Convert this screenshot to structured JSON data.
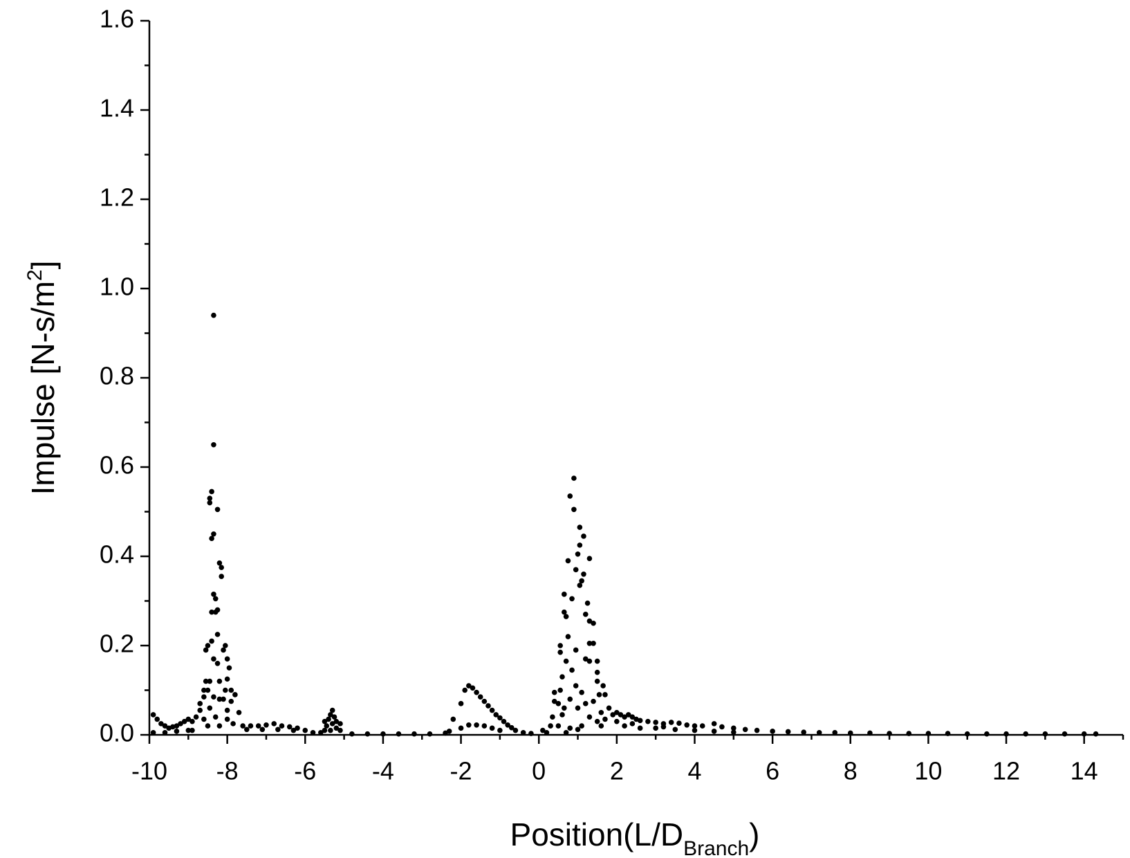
{
  "chart_data": {
    "type": "scatter",
    "x_label": {
      "text": "Position(L/D",
      "sub": "Branch",
      "end": ")"
    },
    "y_label": {
      "text": "Impulse [N-s/m",
      "sup": "2",
      "end": "]"
    },
    "color": "#000000",
    "xlim": [
      -10,
      15
    ],
    "ylim": [
      0,
      1.6
    ],
    "xticks": [
      -10,
      -8,
      -6,
      -4,
      -2,
      0,
      2,
      4,
      6,
      8,
      10,
      12,
      14
    ],
    "xticks_minor": [
      -9,
      -7,
      -5,
      -3,
      -1,
      1,
      3,
      5,
      7,
      9,
      11,
      13,
      15
    ],
    "yticks": [
      {
        "value": 0,
        "label": "0.0"
      },
      0.2,
      0.4,
      0.6,
      0.8,
      {
        "value": 1,
        "label": "1.0"
      },
      1.2,
      1.4,
      1.6
    ],
    "yticks_minor": [
      0.1,
      0.3,
      0.5,
      0.7,
      0.9,
      1.1,
      1.3,
      1.5
    ],
    "x": [
      -8.35,
      -8.35,
      -8.4,
      -8.45,
      -8.45,
      -8.25,
      -8.35,
      -8.4,
      -8.2,
      -8.15,
      -8.15,
      -8.35,
      -8.3,
      -8.4,
      -8.3,
      -8.25,
      -8.25,
      -8.4,
      -8.5,
      -8.55,
      -8.05,
      -8.1,
      -8.0,
      -7.95,
      -8.35,
      -8.25,
      -8.55,
      -8.45,
      -8.6,
      -8.5,
      -8.2,
      -8.0,
      -8.05,
      -7.9,
      -7.8,
      -8.7,
      -8.6,
      -8.35,
      -8.2,
      -8.1,
      -7.9,
      -8.7,
      -8.45,
      -7.7,
      -8.8,
      -8.3,
      -8.0,
      -8.9,
      -8.5,
      -8.2,
      -7.85,
      -8.0,
      -8.6,
      -9.9,
      -9.8,
      -9.7,
      -9.6,
      -9.5,
      -9.4,
      -9.3,
      -9.2,
      -9.1,
      -9.0,
      -9.9,
      -9.6,
      -9.3,
      -9.0,
      -8.9,
      -7.6,
      -7.4,
      -7.2,
      -7.0,
      -6.8,
      -6.6,
      -6.4,
      -6.2,
      -6.0,
      -5.8,
      -7.5,
      -7.1,
      -6.7,
      -6.3,
      -5.3,
      -5.35,
      -5.25,
      -5.4,
      -5.2,
      -5.5,
      -5.3,
      -5.1,
      -5.45,
      -5.2,
      -5.35,
      -5.5,
      -5.1,
      -5.6,
      -4.8,
      -4.4,
      -4,
      -3.6,
      -3.2,
      -2.8,
      -2.4,
      -2.2,
      -2.0,
      -1.9,
      -1.8,
      -1.7,
      -1.6,
      -1.5,
      -1.4,
      -1.3,
      -1.2,
      -1.1,
      -1.0,
      -0.9,
      -0.8,
      -0.7,
      -0.6,
      -0.4,
      -0.2,
      -2.0,
      -1.8,
      -1.6,
      -1.4,
      -1.2,
      -1.0,
      -2.3,
      0.9,
      0.8,
      0.9,
      1.05,
      1.15,
      1.05,
      1.0,
      0.75,
      1.3,
      0.95,
      1.15,
      1.1,
      1.05,
      0.65,
      0.85,
      1.25,
      0.65,
      0.7,
      1.3,
      1.4,
      1.2,
      0.55,
      0.75,
      0.95,
      1.3,
      1.4,
      0.55,
      1.2,
      1.3,
      1.5,
      0.7,
      0.6,
      0.85,
      1.5,
      1.5,
      0.4,
      0.55,
      0.95,
      1.65,
      1.1,
      1.55,
      1.7,
      0.4,
      0.5,
      0.8,
      1.2,
      1.4,
      0.65,
      1.0,
      1.8,
      1.6,
      0.35,
      0.6,
      1.3,
      1.9,
      0.3,
      0.5,
      0.8,
      1.1,
      1.5,
      1.7,
      0.2,
      0.1,
      0.7,
      1.0,
      1.6,
      2.0,
      2.1,
      2.2,
      2.3,
      2.4,
      2.5,
      2.6,
      2.8,
      3.0,
      3.2,
      3.4,
      3.6,
      3.8,
      4.0,
      4.2,
      4.5,
      4.7,
      5.0,
      5.3,
      5.6,
      6.0,
      6.4,
      6.8,
      7.2,
      7.6,
      8,
      8.5,
      9,
      9.5,
      10,
      10.5,
      11,
      11.5,
      12,
      12.5,
      13,
      13.5,
      14,
      14.3,
      2.2,
      2.6,
      3.0,
      3.5,
      4.0,
      4.5,
      5.0,
      2.0,
      2.4,
      3.2
    ],
    "values": [
      0.94,
      0.65,
      0.545,
      0.53,
      0.52,
      0.505,
      0.45,
      0.44,
      0.385,
      0.375,
      0.355,
      0.315,
      0.305,
      0.275,
      0.275,
      0.28,
      0.225,
      0.21,
      0.2,
      0.19,
      0.2,
      0.19,
      0.17,
      0.15,
      0.17,
      0.16,
      0.12,
      0.12,
      0.1,
      0.1,
      0.12,
      0.125,
      0.1,
      0.1,
      0.09,
      0.07,
      0.085,
      0.085,
      0.08,
      0.08,
      0.075,
      0.055,
      0.06,
      0.05,
      0.04,
      0.04,
      0.035,
      0.03,
      0.02,
      0.02,
      0.025,
      0.055,
      0.035,
      0.045,
      0.035,
      0.025,
      0.02,
      0.015,
      0.018,
      0.02,
      0.025,
      0.03,
      0.035,
      0.005,
      0.005,
      0.008,
      0.01,
      0.01,
      0.02,
      0.02,
      0.02,
      0.022,
      0.025,
      0.02,
      0.018,
      0.015,
      0.01,
      0.005,
      0.012,
      0.012,
      0.012,
      0.01,
      0.055,
      0.045,
      0.04,
      0.035,
      0.03,
      0.03,
      0.025,
      0.025,
      0.02,
      0.015,
      0.01,
      0.01,
      0.01,
      0.005,
      0.002,
      0.002,
      0.002,
      0.002,
      0.002,
      0.002,
      0.004,
      0.035,
      0.07,
      0.1,
      0.11,
      0.105,
      0.095,
      0.085,
      0.075,
      0.065,
      0.055,
      0.045,
      0.038,
      0.03,
      0.022,
      0.016,
      0.01,
      0.005,
      0.003,
      0.015,
      0.022,
      0.022,
      0.02,
      0.015,
      0.01,
      0.008,
      0.575,
      0.535,
      0.505,
      0.465,
      0.445,
      0.425,
      0.405,
      0.39,
      0.395,
      0.37,
      0.36,
      0.345,
      0.335,
      0.315,
      0.305,
      0.295,
      0.275,
      0.265,
      0.255,
      0.25,
      0.27,
      0.2,
      0.22,
      0.19,
      0.205,
      0.205,
      0.185,
      0.17,
      0.165,
      0.165,
      0.165,
      0.13,
      0.145,
      0.14,
      0.12,
      0.095,
      0.1,
      0.11,
      0.11,
      0.095,
      0.09,
      0.09,
      0.075,
      0.07,
      0.08,
      0.07,
      0.075,
      0.06,
      0.06,
      0.06,
      0.05,
      0.04,
      0.045,
      0.04,
      0.045,
      0.02,
      0.02,
      0.015,
      0.02,
      0.03,
      0.035,
      0.005,
      0.01,
      0.005,
      0.012,
      0.02,
      0.05,
      0.045,
      0.04,
      0.045,
      0.04,
      0.035,
      0.032,
      0.03,
      0.028,
      0.025,
      0.028,
      0.026,
      0.022,
      0.02,
      0.02,
      0.025,
      0.018,
      0.015,
      0.012,
      0.01,
      0.008,
      0.007,
      0.006,
      0.005,
      0.005,
      0.004,
      0.004,
      0.003,
      0.003,
      0.003,
      0.003,
      0.002,
      0.002,
      0.002,
      0.002,
      0.002,
      0.002,
      0.002,
      0.002,
      0.02,
      0.015,
      0.015,
      0.012,
      0.01,
      0.008,
      0.006,
      0.03,
      0.025,
      0.018
    ]
  }
}
